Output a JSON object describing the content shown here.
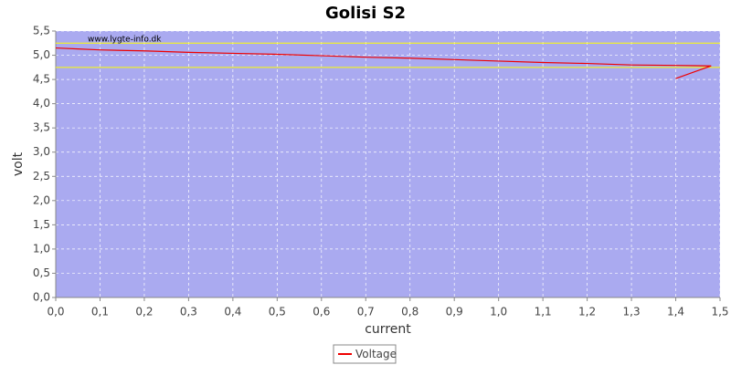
{
  "chart_data": {
    "type": "line",
    "title": "Golisi S2",
    "watermark": "www.lygte-info.dk",
    "x_label": "current",
    "y_label": "volt",
    "xlim": [
      0,
      1.5
    ],
    "xticks": [
      {
        "value": 0,
        "label": "0,0"
      },
      {
        "value": 0.1,
        "label": "0,1"
      },
      {
        "value": 0.2,
        "label": "0,2"
      },
      {
        "value": 0.3,
        "label": "0,3"
      },
      {
        "value": 0.4,
        "label": "0,4"
      },
      {
        "value": 0.5,
        "label": "0,5"
      },
      {
        "value": 0.6,
        "label": "0,6"
      },
      {
        "value": 0.7,
        "label": "0,7"
      },
      {
        "value": 0.8,
        "label": "0,8"
      },
      {
        "value": 0.9,
        "label": "0,9"
      },
      {
        "value": 1.0,
        "label": "1,0"
      },
      {
        "value": 1.1,
        "label": "1,1"
      },
      {
        "value": 1.2,
        "label": "1,2"
      },
      {
        "value": 1.3,
        "label": "1,3"
      },
      {
        "value": 1.4,
        "label": "1,4"
      },
      {
        "value": 1.5,
        "label": "1,5"
      }
    ],
    "ylim": [
      0,
      5.5
    ],
    "yticks": [
      {
        "value": 0,
        "label": "0,0"
      },
      {
        "value": 0.5,
        "label": "0,5"
      },
      {
        "value": 1.0,
        "label": "1,0"
      },
      {
        "value": 1.5,
        "label": "1,5"
      },
      {
        "value": 2.0,
        "label": "2,0"
      },
      {
        "value": 2.5,
        "label": "2,5"
      },
      {
        "value": 3.0,
        "label": "3,0"
      },
      {
        "value": 3.5,
        "label": "3,5"
      },
      {
        "value": 4.0,
        "label": "4,0"
      },
      {
        "value": 4.5,
        "label": "4,5"
      },
      {
        "value": 5.0,
        "label": "5,0"
      },
      {
        "value": 5.5,
        "label": "5,5"
      }
    ],
    "grid": true,
    "reference_lines": [
      {
        "value": 5.25,
        "color": "#ffff00"
      },
      {
        "value": 4.75,
        "color": "#ffff00"
      }
    ],
    "legend_position": "bottom",
    "x": [
      0,
      0.05,
      0.1,
      0.2,
      0.3,
      0.4,
      0.5,
      0.6,
      0.7,
      0.8,
      0.9,
      1.0,
      1.1,
      1.2,
      1.3,
      1.4,
      1.48,
      1.4
    ],
    "series": [
      {
        "name": "Voltage",
        "color": "#ee0000",
        "values": [
          5.15,
          5.13,
          5.11,
          5.09,
          5.06,
          5.04,
          5.02,
          4.99,
          4.96,
          4.94,
          4.91,
          4.88,
          4.85,
          4.83,
          4.8,
          4.79,
          4.78,
          4.52
        ]
      }
    ]
  }
}
